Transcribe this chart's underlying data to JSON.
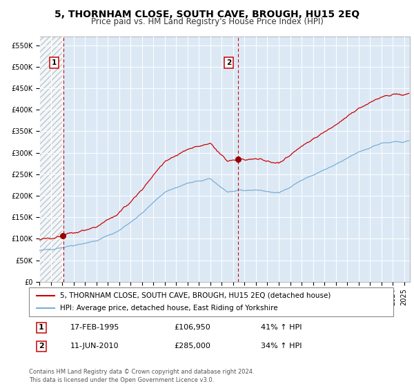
{
  "title": "5, THORNHAM CLOSE, SOUTH CAVE, BROUGH, HU15 2EQ",
  "subtitle": "Price paid vs. HM Land Registry's House Price Index (HPI)",
  "hpi_label": "HPI: Average price, detached house, East Riding of Yorkshire",
  "property_label": "5, THORNHAM CLOSE, SOUTH CAVE, BROUGH, HU15 2EQ (detached house)",
  "transaction1_date": "17-FEB-1995",
  "transaction1_price": 106950,
  "transaction1_hpi": "41% ↑ HPI",
  "transaction2_date": "11-JUN-2010",
  "transaction2_price": 285000,
  "transaction2_hpi": "34% ↑ HPI",
  "transaction1_x": 1995.12,
  "transaction2_x": 2010.44,
  "ylim": [
    0,
    570000
  ],
  "xlim_start": 1993.0,
  "xlim_end": 2025.5,
  "background_color": "#dce9f5",
  "grid_color": "#ffffff",
  "red_line_color": "#cc0000",
  "blue_line_color": "#7aaed6",
  "marker_color": "#990000",
  "dashed_line_color": "#cc0000",
  "title_fontsize": 10,
  "subtitle_fontsize": 8.5,
  "tick_fontsize": 7,
  "legend_fontsize": 7.5,
  "table_fontsize": 8,
  "footer_fontsize": 6,
  "footnote": "Contains HM Land Registry data © Crown copyright and database right 2024.\nThis data is licensed under the Open Government Licence v3.0."
}
